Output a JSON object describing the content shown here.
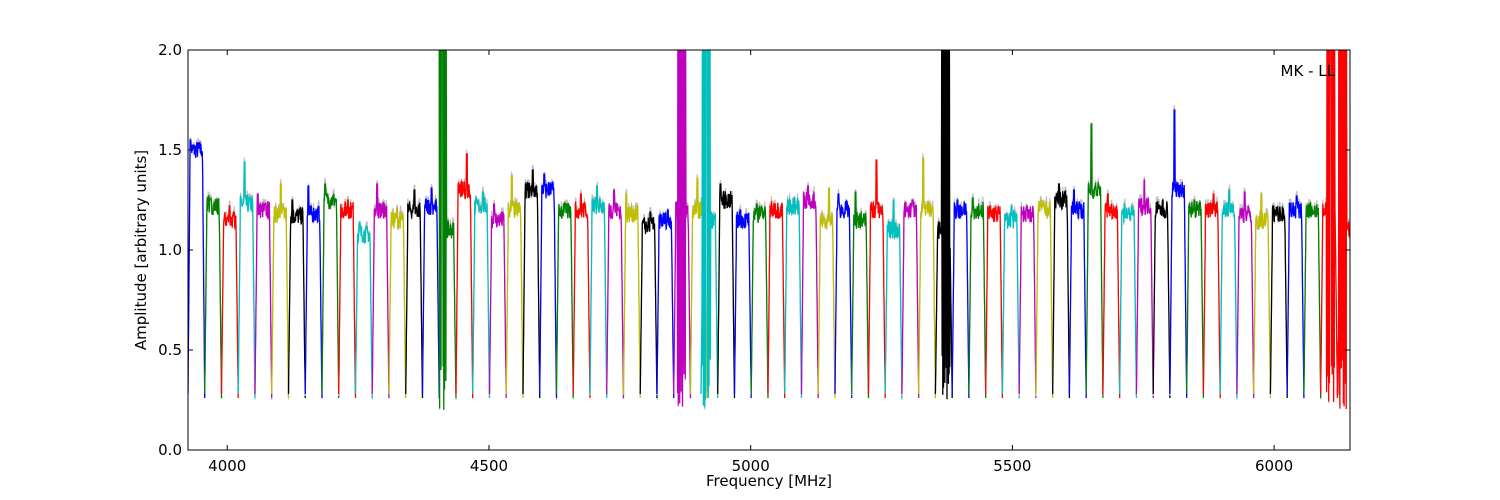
{
  "chart_data": {
    "type": "line",
    "title": "",
    "xlabel": "Frequency [MHz]",
    "ylabel": "Amplitude [arbitrary units]",
    "annotation": "MK - LL",
    "xlim": [
      3925,
      6145
    ],
    "ylim": [
      0.0,
      2.0
    ],
    "xticks": [
      4000,
      4500,
      5000,
      5500,
      6000
    ],
    "yticks": [
      0.0,
      0.5,
      1.0,
      1.5,
      2.0
    ],
    "xtick_labels": [
      "4000",
      "4500",
      "5000",
      "5500",
      "6000"
    ],
    "ytick_labels": [
      "0.0",
      "0.5",
      "1.0",
      "1.5",
      "2.0"
    ],
    "grid": false,
    "legend": "none",
    "channel_width_mhz": 32,
    "color_cycle": [
      "#0000ff",
      "#008000",
      "#ff0000",
      "#00bfbf",
      "#bf00bf",
      "#bfbf00",
      "#000000"
    ],
    "shadow_color": "#bfbfbf",
    "series": [
      {
        "x0": 3925,
        "color": "#0000ff",
        "level": 1.5,
        "peak": 1.55
      },
      {
        "x0": 3957,
        "color": "#008000",
        "level": 1.22,
        "peak": 1.27
      },
      {
        "x0": 3989,
        "color": "#ff0000",
        "level": 1.15,
        "peak": 1.22
      },
      {
        "x0": 4021,
        "color": "#00bfbf",
        "level": 1.23,
        "peak": 1.44
      },
      {
        "x0": 4053,
        "color": "#bf00bf",
        "level": 1.2,
        "peak": 1.28
      },
      {
        "x0": 4085,
        "color": "#bfbf00",
        "level": 1.18,
        "peak": 1.33
      },
      {
        "x0": 4117,
        "color": "#000000",
        "level": 1.17,
        "peak": 1.25
      },
      {
        "x0": 4149,
        "color": "#0000ff",
        "level": 1.18,
        "peak": 1.32
      },
      {
        "x0": 4181,
        "color": "#008000",
        "level": 1.25,
        "peak": 1.33
      },
      {
        "x0": 4213,
        "color": "#ff0000",
        "level": 1.2,
        "peak": 1.25
      },
      {
        "x0": 4245,
        "color": "#00bfbf",
        "level": 1.08,
        "peak": 1.14
      },
      {
        "x0": 4277,
        "color": "#bf00bf",
        "level": 1.2,
        "peak": 1.33
      },
      {
        "x0": 4309,
        "color": "#bfbf00",
        "level": 1.15,
        "peak": 1.21
      },
      {
        "x0": 4341,
        "color": "#000000",
        "level": 1.2,
        "peak": 1.3
      },
      {
        "x0": 4373,
        "color": "#0000ff",
        "level": 1.22,
        "peak": 1.31
      },
      {
        "x0": 4405,
        "color": "#008000",
        "level": 1.1,
        "peak": 2.0
      },
      {
        "x0": 4437,
        "color": "#ff0000",
        "level": 1.3,
        "peak": 1.48
      },
      {
        "x0": 4469,
        "color": "#00bfbf",
        "level": 1.22,
        "peak": 1.29
      },
      {
        "x0": 4501,
        "color": "#bf00bf",
        "level": 1.15,
        "peak": 1.23
      },
      {
        "x0": 4533,
        "color": "#bfbf00",
        "level": 1.2,
        "peak": 1.37
      },
      {
        "x0": 4565,
        "color": "#000000",
        "level": 1.3,
        "peak": 1.4
      },
      {
        "x0": 4597,
        "color": "#0000ff",
        "level": 1.3,
        "peak": 1.38
      },
      {
        "x0": 4629,
        "color": "#008000",
        "level": 1.2,
        "peak": 1.23
      },
      {
        "x0": 4661,
        "color": "#ff0000",
        "level": 1.2,
        "peak": 1.28
      },
      {
        "x0": 4693,
        "color": "#00bfbf",
        "level": 1.22,
        "peak": 1.32
      },
      {
        "x0": 4725,
        "color": "#bf00bf",
        "level": 1.2,
        "peak": 1.3
      },
      {
        "x0": 4757,
        "color": "#bfbf00",
        "level": 1.18,
        "peak": 1.28
      },
      {
        "x0": 4789,
        "color": "#000000",
        "level": 1.12,
        "peak": 1.19
      },
      {
        "x0": 4821,
        "color": "#0000ff",
        "level": 1.15,
        "peak": 1.2
      },
      {
        "x0": 4853,
        "color": "#bf00bf",
        "level": 1.2,
        "peak": 2.0
      },
      {
        "x0": 4885,
        "color": "#bfbf00",
        "level": 1.2,
        "peak": 1.36
      },
      {
        "x0": 4905,
        "color": "#00bfbf",
        "level": 1.15,
        "peak": 2.0
      },
      {
        "x0": 4937,
        "color": "#000000",
        "level": 1.25,
        "peak": 1.33
      },
      {
        "x0": 4969,
        "color": "#0000ff",
        "level": 1.15,
        "peak": 1.2
      },
      {
        "x0": 5001,
        "color": "#008000",
        "level": 1.18,
        "peak": 1.23
      },
      {
        "x0": 5033,
        "color": "#ff0000",
        "level": 1.2,
        "peak": 1.23
      },
      {
        "x0": 5065,
        "color": "#00bfbf",
        "level": 1.22,
        "peak": 1.26
      },
      {
        "x0": 5097,
        "color": "#bf00bf",
        "level": 1.25,
        "peak": 1.32
      },
      {
        "x0": 5129,
        "color": "#bfbf00",
        "level": 1.15,
        "peak": 1.31
      },
      {
        "x0": 5161,
        "color": "#0000ff",
        "level": 1.2,
        "peak": 1.28
      },
      {
        "x0": 5193,
        "color": "#008000",
        "level": 1.15,
        "peak": 1.29
      },
      {
        "x0": 5225,
        "color": "#ff0000",
        "level": 1.2,
        "peak": 1.45
      },
      {
        "x0": 5257,
        "color": "#00bfbf",
        "level": 1.1,
        "peak": 1.25
      },
      {
        "x0": 5289,
        "color": "#bf00bf",
        "level": 1.2,
        "peak": 1.25
      },
      {
        "x0": 5321,
        "color": "#bfbf00",
        "level": 1.2,
        "peak": 1.46
      },
      {
        "x0": 5353,
        "color": "#000000",
        "level": 1.1,
        "peak": 2.0
      },
      {
        "x0": 5385,
        "color": "#0000ff",
        "level": 1.2,
        "peak": 1.25
      },
      {
        "x0": 5417,
        "color": "#008000",
        "level": 1.2,
        "peak": 1.26
      },
      {
        "x0": 5449,
        "color": "#ff0000",
        "level": 1.18,
        "peak": 1.22
      },
      {
        "x0": 5481,
        "color": "#00bfbf",
        "level": 1.15,
        "peak": 1.22
      },
      {
        "x0": 5513,
        "color": "#bf00bf",
        "level": 1.18,
        "peak": 1.22
      },
      {
        "x0": 5545,
        "color": "#bfbf00",
        "level": 1.2,
        "peak": 1.25
      },
      {
        "x0": 5577,
        "color": "#000000",
        "level": 1.25,
        "peak": 1.33
      },
      {
        "x0": 5609,
        "color": "#0000ff",
        "level": 1.2,
        "peak": 1.3
      },
      {
        "x0": 5641,
        "color": "#008000",
        "level": 1.3,
        "peak": 1.63
      },
      {
        "x0": 5673,
        "color": "#ff0000",
        "level": 1.2,
        "peak": 1.28
      },
      {
        "x0": 5705,
        "color": "#00bfbf",
        "level": 1.18,
        "peak": 1.23
      },
      {
        "x0": 5737,
        "color": "#bf00bf",
        "level": 1.22,
        "peak": 1.35
      },
      {
        "x0": 5769,
        "color": "#000000",
        "level": 1.2,
        "peak": 1.25
      },
      {
        "x0": 5801,
        "color": "#0000ff",
        "level": 1.3,
        "peak": 1.7
      },
      {
        "x0": 5833,
        "color": "#008000",
        "level": 1.2,
        "peak": 1.25
      },
      {
        "x0": 5865,
        "color": "#ff0000",
        "level": 1.2,
        "peak": 1.28
      },
      {
        "x0": 5897,
        "color": "#00bfbf",
        "level": 1.2,
        "peak": 1.3
      },
      {
        "x0": 5929,
        "color": "#bf00bf",
        "level": 1.18,
        "peak": 1.29
      },
      {
        "x0": 5961,
        "color": "#bfbf00",
        "level": 1.15,
        "peak": 1.28
      },
      {
        "x0": 5993,
        "color": "#000000",
        "level": 1.18,
        "peak": 1.22
      },
      {
        "x0": 6025,
        "color": "#0000ff",
        "level": 1.2,
        "peak": 1.27
      },
      {
        "x0": 6057,
        "color": "#008000",
        "level": 1.2,
        "peak": 1.22
      },
      {
        "x0": 6089,
        "color": "#ff0000",
        "level": 1.2,
        "peak": 2.0
      },
      {
        "x0": 6121,
        "color": "#ff0000",
        "level": 1.1,
        "peak": 2.0
      }
    ]
  }
}
